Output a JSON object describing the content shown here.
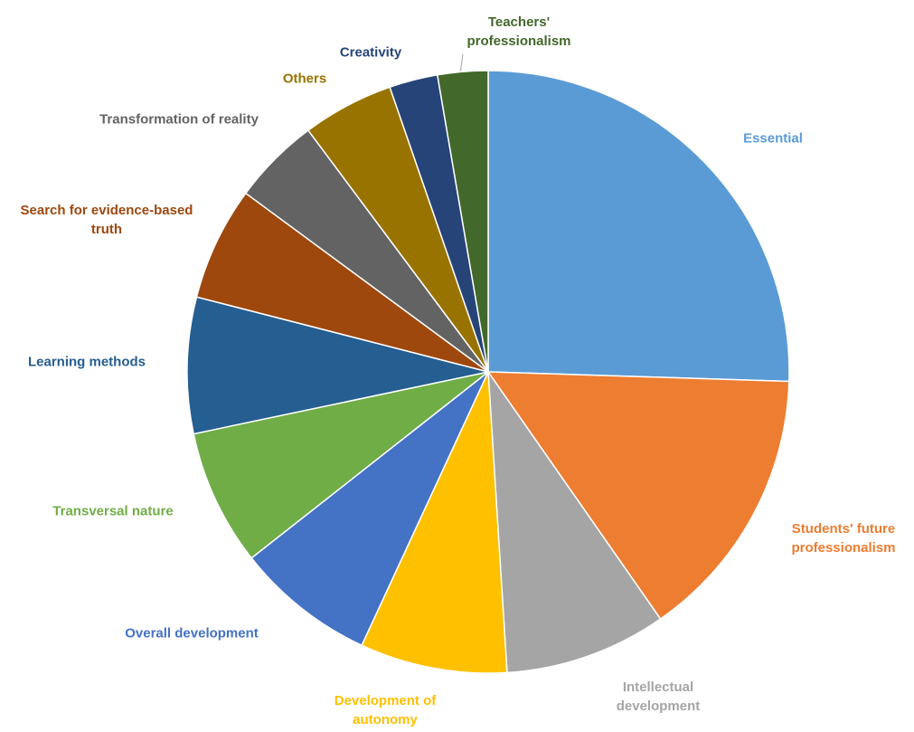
{
  "chart_data": {
    "type": "pie",
    "categories": [
      "Essential",
      "Students' future professionalism",
      "Intellectual development",
      "Development of autonomy",
      "Overall development",
      "Transversal nature",
      "Learning methods",
      "Search for evidence-based truth",
      "Transformation of reality",
      "Others",
      "Creativity",
      "Teachers' professionalism"
    ],
    "values": [
      25.5,
      14.8,
      8.7,
      7.9,
      7.5,
      7.3,
      7.3,
      6.1,
      4.7,
      4.9,
      2.6,
      2.7
    ],
    "colors": [
      "#5b9bd5",
      "#ed7d31",
      "#a5a5a5",
      "#ffc000",
      "#4472c4",
      "#70ad47",
      "#255e91",
      "#9e480e",
      "#636363",
      "#997300",
      "#264478",
      "#43682b"
    ]
  }
}
